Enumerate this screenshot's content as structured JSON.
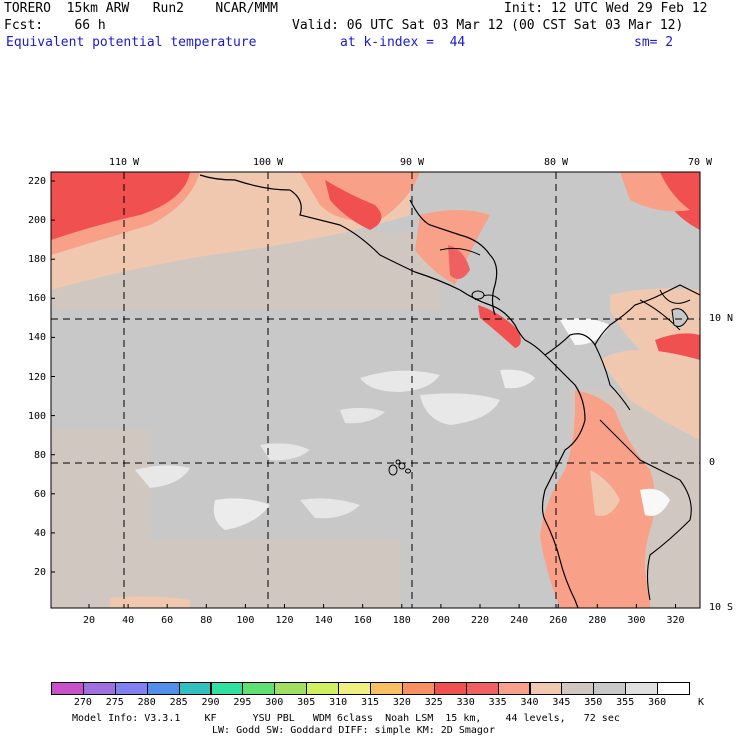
{
  "header": {
    "line1_left": "TORERO  15km ARW   Run2    NCAR/MMM",
    "line1_right": "Init: 12 UTC Wed 29 Feb 12",
    "line2_left": "Fcst:    66 h",
    "line2_right": "Valid: 06 UTC Sat 03 Mar 12 (00 CST Sat 03 Mar 12)",
    "field_name": "Equivalent potential temperature",
    "level": "at k-index =  44",
    "smoothing": "sm= 2"
  },
  "map": {
    "top_labels": [
      "110 W",
      "100 W",
      "90 W",
      "80 W",
      "70 W"
    ],
    "right_labels": [
      "10 N",
      "0",
      "10 S"
    ],
    "left_labels": [
      "220",
      "200",
      "180",
      "160",
      "140",
      "120",
      "100",
      "80",
      "60",
      "40",
      "20"
    ],
    "bottom_labels": [
      "20",
      "40",
      "60",
      "80",
      "100",
      "120",
      "140",
      "160",
      "180",
      "200",
      "220",
      "240",
      "260",
      "280",
      "300",
      "320"
    ]
  },
  "legend": {
    "unit": "K",
    "labels": [
      "270",
      "275",
      "280",
      "285",
      "290",
      "295",
      "300",
      "305",
      "310",
      "315",
      "320",
      "325",
      "330",
      "335",
      "340",
      "345",
      "350",
      "355",
      "360"
    ],
    "colors": [
      "#c850c8",
      "#a070e0",
      "#8080f0",
      "#5090e8",
      "#30c0c0",
      "#30e0a0",
      "#60e070",
      "#a0e060",
      "#d0f060",
      "#f0f080",
      "#f8c060",
      "#f89060",
      "#f05050",
      "#f06060",
      "#f8a088",
      "#f0c8b0",
      "#d0c8c0",
      "#c8c8c8",
      "#e0e0e0",
      "#ffffff"
    ]
  },
  "footer": {
    "line1": "Model Info: V3.3.1    KF      YSU PBL   WDM 6class  Noah LSM  15 km,    44 levels,   72 sec",
    "line2": "LW: Godd SW: Goddard DIFF: simple KM: 2D Smagor"
  }
}
